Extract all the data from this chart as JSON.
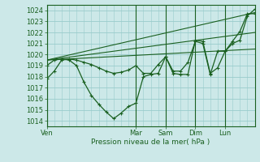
{
  "xlabel": "Pression niveau de la mer( hPa )",
  "ylim": [
    1013.5,
    1024.5
  ],
  "xlim": [
    0,
    168
  ],
  "yticks": [
    1014,
    1015,
    1016,
    1017,
    1018,
    1019,
    1020,
    1021,
    1022,
    1023,
    1024
  ],
  "bg_color": "#cce8e8",
  "grid_color": "#99cccc",
  "line_color": "#1a6020",
  "x_day_labels": [
    "Ven",
    "Mar",
    "Sam",
    "Dim",
    "Lun"
  ],
  "x_day_positions": [
    0,
    72,
    96,
    120,
    144
  ],
  "xtick_minor_step": 6,
  "series": {
    "flat1": {
      "x": [
        0,
        168
      ],
      "y": [
        1019.5,
        1020.5
      ]
    },
    "flat2": {
      "x": [
        0,
        168
      ],
      "y": [
        1019.5,
        1022.0
      ]
    },
    "flat3": {
      "x": [
        0,
        168
      ],
      "y": [
        1019.5,
        1023.8
      ]
    },
    "zigzag1": {
      "x": [
        0,
        6,
        12,
        18,
        24,
        30,
        36,
        42,
        48,
        54,
        60,
        66,
        72,
        78,
        84,
        90,
        96,
        102,
        108,
        114,
        120,
        126,
        132,
        138,
        144,
        150,
        156,
        162,
        168
      ],
      "y": [
        1017.8,
        1018.5,
        1019.5,
        1019.6,
        1019.5,
        1019.3,
        1019.1,
        1018.8,
        1018.5,
        1018.3,
        1018.4,
        1018.6,
        1019.0,
        1018.3,
        1018.3,
        1019.1,
        1019.8,
        1018.5,
        1018.5,
        1019.3,
        1021.2,
        1021.0,
        1018.2,
        1020.3,
        1020.3,
        1021.2,
        1022.1,
        1023.7,
        1023.7
      ]
    },
    "zigzag2": {
      "x": [
        0,
        6,
        12,
        18,
        24,
        30,
        36,
        42,
        48,
        54,
        60,
        66,
        72,
        78,
        84,
        90,
        96,
        102,
        108,
        114,
        120,
        126,
        132,
        138,
        144,
        150,
        156,
        162,
        168
      ],
      "y": [
        1019.0,
        1019.5,
        1019.6,
        1019.5,
        1019.0,
        1017.5,
        1016.3,
        1015.5,
        1014.8,
        1014.2,
        1014.7,
        1015.3,
        1015.6,
        1018.0,
        1018.2,
        1018.3,
        1019.8,
        1018.3,
        1018.2,
        1018.2,
        1021.3,
        1021.2,
        1018.3,
        1018.8,
        1020.3,
        1021.0,
        1021.3,
        1023.5,
        1024.1
      ]
    }
  }
}
